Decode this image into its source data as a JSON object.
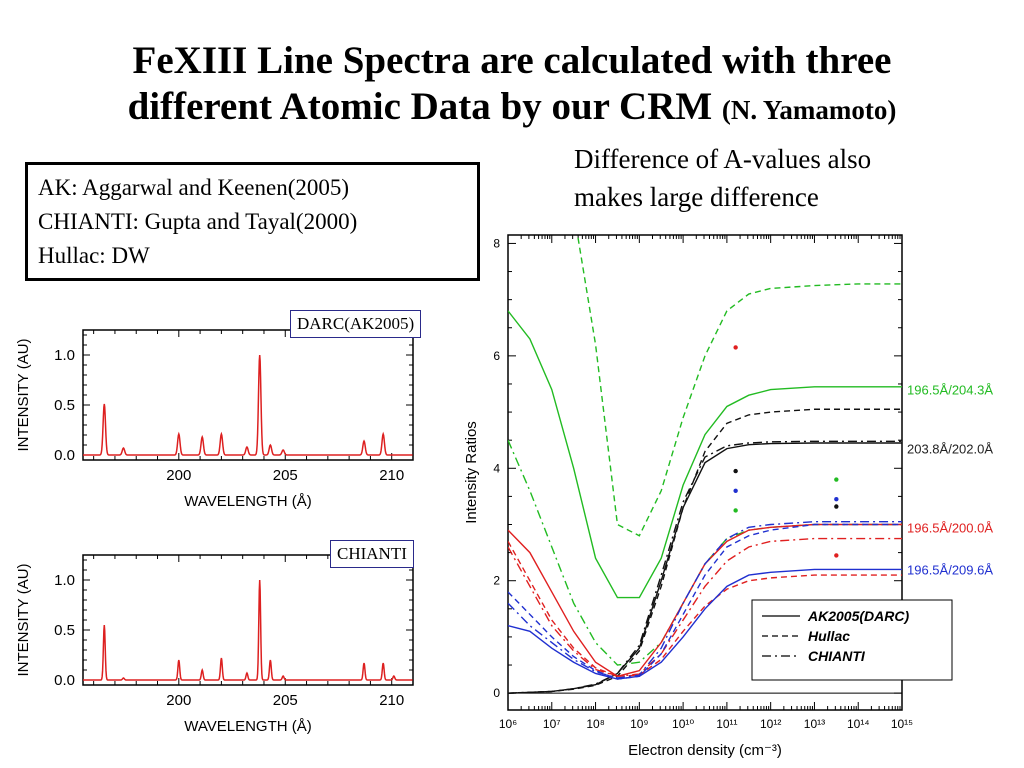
{
  "slide": {
    "title_line1": "FeXIII Line Spectra are calculated with three",
    "title_line2": "different Atomic Data by our CRM",
    "title_author": "(N. Yamamoto)",
    "note_line1": "Difference of A-values also",
    "note_line2": "makes large difference",
    "legend_lines": [
      "AK: Aggarwal and Keenen(2005)",
      "CHIANTI: Gupta and Tayal(2000)",
      "Hullac: DW"
    ]
  },
  "chart_data": [
    {
      "type": "line",
      "panel_label": "DARC(AK2005)",
      "xlabel": "WAVELENGTH (Å)",
      "ylabel": "INTENSITY (AU)",
      "xlim": [
        195.5,
        211
      ],
      "ylim": [
        -0.05,
        1.25
      ],
      "xticks": [
        200,
        205,
        210
      ],
      "yticks": [
        "0.0",
        "0.5",
        "1.0"
      ],
      "color": "#dd2020",
      "line_width": 0.08,
      "peaks": [
        [
          196.5,
          0.51
        ],
        [
          197.4,
          0.07
        ],
        [
          200.0,
          0.21
        ],
        [
          201.1,
          0.18
        ],
        [
          202.0,
          0.21
        ],
        [
          203.2,
          0.08
        ],
        [
          203.8,
          1.0
        ],
        [
          204.3,
          0.1
        ],
        [
          204.9,
          0.05
        ],
        [
          208.7,
          0.14
        ],
        [
          209.6,
          0.21
        ]
      ]
    },
    {
      "type": "line",
      "panel_label": "CHIANTI",
      "xlabel": "WAVELENGTH (Å)",
      "ylabel": "INTENSITY (AU)",
      "xlim": [
        195.5,
        211
      ],
      "ylim": [
        -0.05,
        1.25
      ],
      "xticks": [
        200,
        205,
        210
      ],
      "yticks": [
        "0.0",
        "0.5",
        "1.0"
      ],
      "color": "#dd2020",
      "line_width": 0.06,
      "peaks": [
        [
          196.5,
          0.55
        ],
        [
          197.4,
          0.02
        ],
        [
          200.0,
          0.2
        ],
        [
          201.1,
          0.1
        ],
        [
          202.0,
          0.22
        ],
        [
          203.2,
          0.07
        ],
        [
          203.8,
          1.0
        ],
        [
          204.3,
          0.2
        ],
        [
          204.9,
          0.04
        ],
        [
          208.7,
          0.17
        ],
        [
          209.6,
          0.17
        ],
        [
          210.1,
          0.04
        ]
      ]
    },
    {
      "type": "line",
      "xlabel": "Electron density (cm⁻³)",
      "ylabel": "Intensity Ratios",
      "xscale": "log",
      "xlim": [
        6,
        15
      ],
      "ylim": [
        -0.3,
        8.15
      ],
      "xtick_labels": [
        "10⁶",
        "10⁷",
        "10⁸",
        "10⁹",
        "10¹⁰",
        "10¹¹",
        "10¹²",
        "10¹³",
        "10¹⁴",
        "10¹⁵"
      ],
      "yticks": [
        0,
        2,
        4,
        6,
        8
      ],
      "legend": {
        "placement": "bottom-right",
        "entries": [
          {
            "label": "AK2005(DARC)",
            "dash": "solid"
          },
          {
            "label": "Hullac",
            "dash": "dashed"
          },
          {
            "label": "CHIANTI",
            "dash": "dashdot"
          }
        ]
      },
      "ratio_labels": [
        {
          "text": "196.5Å/204.3Å",
          "color": "#22bb22",
          "y": 5.4
        },
        {
          "text": "203.8Å/202.0Å",
          "color": "#222222",
          "y": 4.35
        },
        {
          "text": "196.5Å/200.0Å",
          "color": "#e02020",
          "y": 2.95
        },
        {
          "text": "196.5Å/209.6Å",
          "color": "#2030d0",
          "y": 2.2
        }
      ],
      "series": [
        {
          "ratio": "196.5Å/204.3Å",
          "dataset": "AK2005(DARC)",
          "dash": "solid",
          "color": "#22bb22",
          "x": [
            6,
            6.5,
            7,
            7.5,
            8,
            8.5,
            9,
            9.5,
            10,
            10.5,
            11,
            11.5,
            12,
            13,
            14,
            15
          ],
          "y": [
            6.8,
            6.3,
            5.4,
            4.0,
            2.4,
            1.7,
            1.7,
            2.4,
            3.7,
            4.6,
            5.1,
            5.3,
            5.4,
            5.45,
            5.45,
            5.45
          ]
        },
        {
          "ratio": "196.5Å/204.3Å",
          "dataset": "Hullac",
          "dash": "dashed",
          "color": "#22bb22",
          "x": [
            7.6,
            8,
            8.5,
            9,
            9.5,
            10,
            10.5,
            11,
            11.5,
            12,
            13,
            14,
            15
          ],
          "y": [
            8.1,
            6.2,
            3.0,
            2.8,
            3.6,
            4.9,
            6.0,
            6.8,
            7.1,
            7.2,
            7.25,
            7.28,
            7.28
          ]
        },
        {
          "ratio": "196.5Å/204.3Å",
          "dataset": "CHIANTI",
          "dash": "dashdot",
          "color": "#22bb22",
          "x": [
            6,
            6.5,
            7,
            7.5,
            8,
            8.5,
            9,
            9.5,
            10,
            10.5,
            11,
            11.5,
            12,
            13,
            14,
            15
          ],
          "y": [
            4.5,
            3.6,
            2.6,
            1.6,
            0.9,
            0.5,
            0.55,
            0.9,
            1.6,
            2.3,
            2.75,
            2.9,
            2.95,
            3.0,
            3.0,
            3.0
          ]
        },
        {
          "ratio": "203.8Å/202.0Å",
          "dataset": "AK2005(DARC)",
          "dash": "solid",
          "color": "#111111",
          "x": [
            6,
            7,
            7.5,
            8,
            8.5,
            9,
            9.5,
            10,
            10.5,
            11,
            11.5,
            12,
            13,
            14,
            15
          ],
          "y": [
            0.0,
            0.03,
            0.08,
            0.15,
            0.35,
            0.8,
            2.0,
            3.3,
            4.1,
            4.35,
            4.42,
            4.44,
            4.45,
            4.45,
            4.45
          ]
        },
        {
          "ratio": "203.8Å/202.0Å",
          "dataset": "Hullac",
          "dash": "dashed",
          "color": "#111111",
          "x": [
            6,
            7,
            7.5,
            8,
            8.5,
            9,
            9.5,
            10,
            10.5,
            11,
            11.5,
            12,
            13,
            14,
            15
          ],
          "y": [
            0.0,
            0.03,
            0.07,
            0.14,
            0.3,
            0.75,
            1.9,
            3.3,
            4.3,
            4.8,
            4.95,
            5.0,
            5.05,
            5.05,
            5.05
          ]
        },
        {
          "ratio": "203.8Å/202.0Å",
          "dataset": "CHIANTI",
          "dash": "dashdot",
          "color": "#111111",
          "x": [
            6,
            7,
            7.5,
            8,
            8.5,
            9,
            9.5,
            10,
            10.5,
            11,
            11.5,
            12,
            13,
            14,
            15
          ],
          "y": [
            0.0,
            0.03,
            0.08,
            0.16,
            0.35,
            0.85,
            2.1,
            3.4,
            4.2,
            4.4,
            4.45,
            4.47,
            4.48,
            4.48,
            4.48
          ]
        },
        {
          "ratio": "196.5Å/200.0Å",
          "dataset": "AK2005(DARC)",
          "dash": "solid",
          "color": "#e02020",
          "x": [
            6,
            6.5,
            7,
            7.5,
            8,
            8.5,
            9,
            9.5,
            10,
            10.5,
            11,
            11.5,
            12,
            13,
            14,
            15
          ],
          "y": [
            2.9,
            2.5,
            1.8,
            1.1,
            0.55,
            0.3,
            0.4,
            0.9,
            1.6,
            2.3,
            2.7,
            2.9,
            2.95,
            3.0,
            3.0,
            3.0
          ]
        },
        {
          "ratio": "196.5Å/200.0Å",
          "dataset": "Hullac",
          "dash": "dashed",
          "color": "#e02020",
          "x": [
            6,
            6.5,
            7,
            7.5,
            8,
            8.5,
            9,
            9.5,
            10,
            10.5,
            11,
            11.5,
            12,
            13,
            14,
            15
          ],
          "y": [
            2.7,
            2.0,
            1.3,
            0.8,
            0.45,
            0.3,
            0.32,
            0.6,
            1.1,
            1.55,
            1.85,
            2.0,
            2.05,
            2.1,
            2.1,
            2.1
          ]
        },
        {
          "ratio": "196.5Å/200.0Å",
          "dataset": "CHIANTI",
          "dash": "dashdot",
          "color": "#e02020",
          "x": [
            6,
            6.5,
            7,
            7.5,
            8,
            8.5,
            9,
            9.5,
            10,
            10.5,
            11,
            11.5,
            12,
            13,
            14,
            15
          ],
          "y": [
            2.6,
            1.9,
            1.2,
            0.75,
            0.42,
            0.3,
            0.34,
            0.7,
            1.3,
            1.9,
            2.35,
            2.6,
            2.7,
            2.75,
            2.75,
            2.75
          ]
        },
        {
          "ratio": "196.5Å/209.6Å",
          "dataset": "AK2005(DARC)",
          "dash": "solid",
          "color": "#2030d0",
          "x": [
            6,
            6.5,
            7,
            7.5,
            8,
            8.5,
            9,
            9.5,
            10,
            10.5,
            11,
            11.5,
            12,
            13,
            14,
            15
          ],
          "y": [
            1.2,
            1.1,
            0.8,
            0.55,
            0.35,
            0.25,
            0.3,
            0.55,
            1.0,
            1.5,
            1.9,
            2.1,
            2.15,
            2.2,
            2.2,
            2.2
          ]
        },
        {
          "ratio": "196.5Å/209.6Å",
          "dataset": "Hullac",
          "dash": "dashed",
          "color": "#2030d0",
          "x": [
            6,
            6.5,
            7,
            7.5,
            8,
            8.5,
            9,
            9.5,
            10,
            10.5,
            11,
            11.5,
            12,
            13,
            14,
            15
          ],
          "y": [
            1.8,
            1.4,
            1.0,
            0.65,
            0.4,
            0.25,
            0.3,
            0.7,
            1.4,
            2.1,
            2.6,
            2.8,
            2.9,
            3.0,
            3.0,
            3.0
          ]
        },
        {
          "ratio": "196.5Å/209.6Å",
          "dataset": "CHIANTI",
          "dash": "dashdot",
          "color": "#2030d0",
          "x": [
            6,
            6.5,
            7,
            7.5,
            8,
            8.5,
            9,
            9.5,
            10,
            10.5,
            11,
            11.5,
            12,
            13,
            14,
            15
          ],
          "y": [
            1.6,
            1.2,
            0.9,
            0.6,
            0.38,
            0.27,
            0.32,
            0.8,
            1.6,
            2.3,
            2.75,
            2.95,
            3.0,
            3.05,
            3.05,
            3.05
          ]
        }
      ],
      "points": [
        {
          "x": 11.2,
          "y": 6.15,
          "color": "#e02020"
        },
        {
          "x": 11.2,
          "y": 3.95,
          "color": "#111111"
        },
        {
          "x": 11.2,
          "y": 3.6,
          "color": "#2030d0"
        },
        {
          "x": 11.2,
          "y": 3.25,
          "color": "#22bb22"
        },
        {
          "x": 13.5,
          "y": 3.8,
          "color": "#22bb22"
        },
        {
          "x": 13.5,
          "y": 3.45,
          "color": "#2030d0"
        },
        {
          "x": 13.5,
          "y": 3.32,
          "color": "#111111"
        },
        {
          "x": 13.5,
          "y": 2.45,
          "color": "#e02020"
        }
      ]
    }
  ]
}
